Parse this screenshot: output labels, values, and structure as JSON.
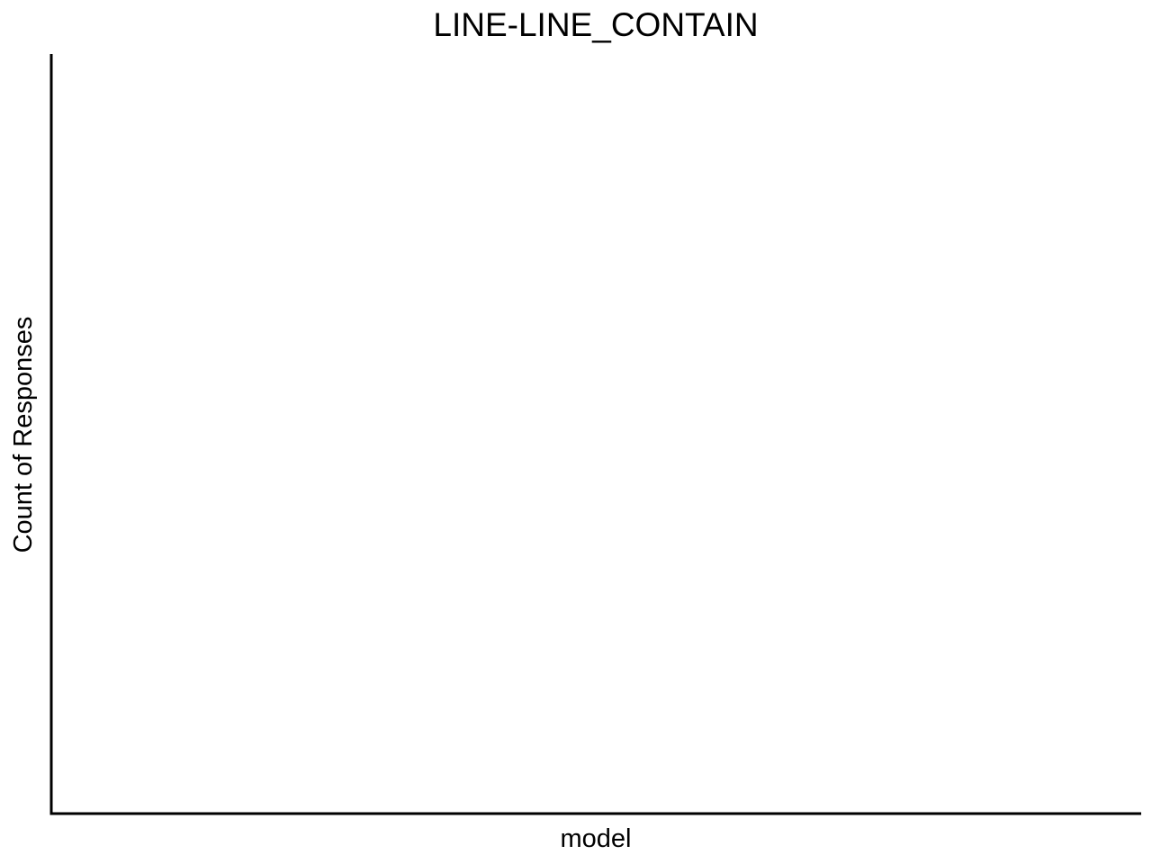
{
  "chart_data": {
    "type": "bar",
    "title": "LINE-LINE_CONTAIN",
    "xlabel": "model",
    "ylabel": "Count of Responses",
    "categories": [],
    "series": [],
    "grid": false,
    "legend": "none"
  }
}
